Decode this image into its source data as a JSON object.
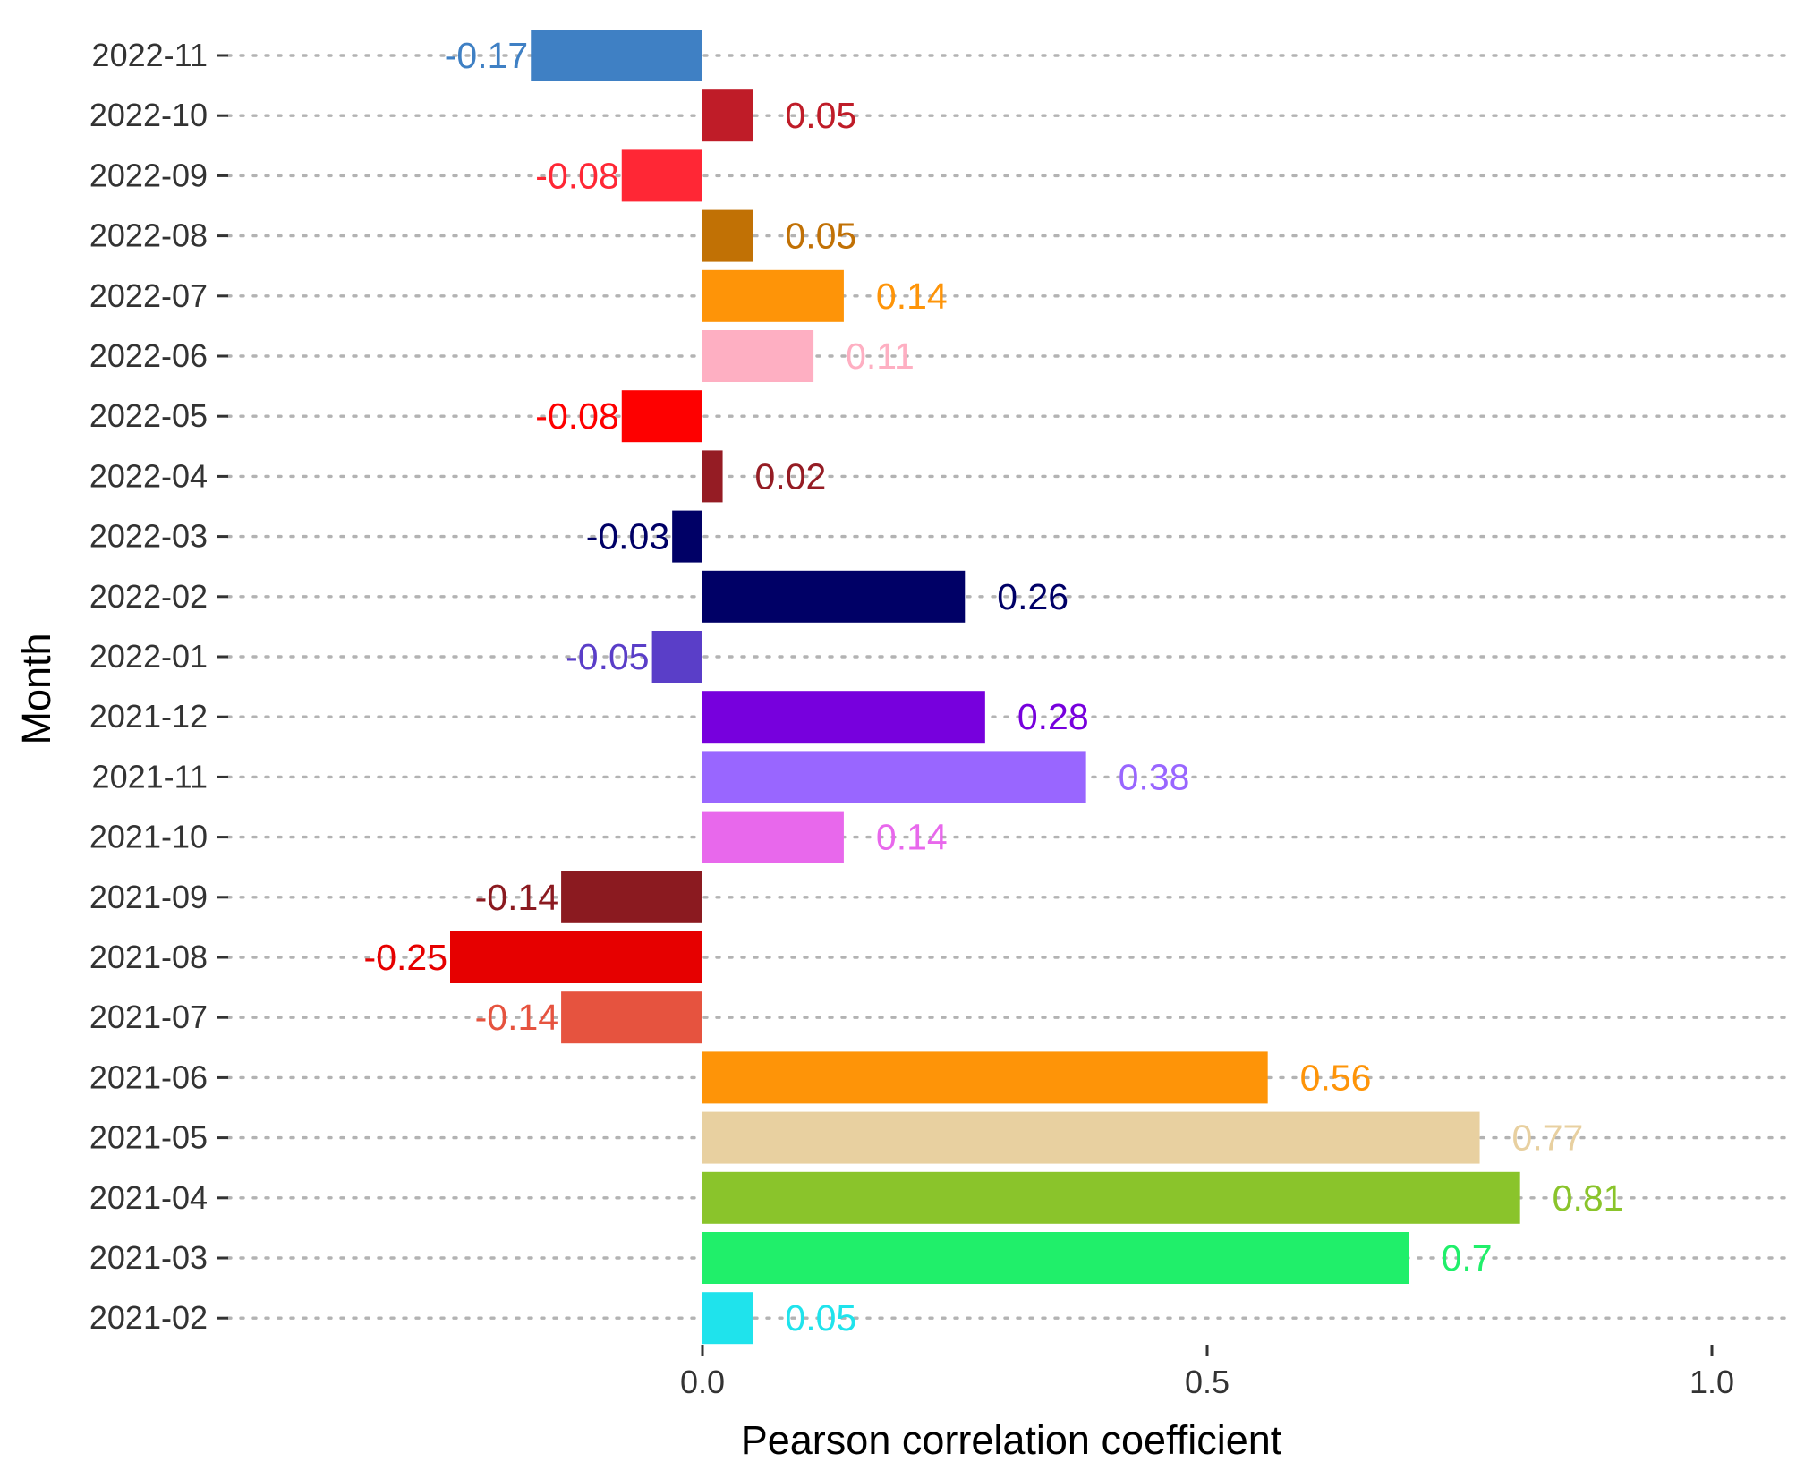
{
  "chart_data": {
    "type": "bar",
    "orientation": "horizontal",
    "xlabel": "Pearson correlation coefficient",
    "ylabel": "Month",
    "xlim": [
      -0.47,
      1.07
    ],
    "x_ticks": [
      {
        "value": 0.0,
        "label": "0.0"
      },
      {
        "value": 0.5,
        "label": "0.5"
      },
      {
        "value": 1.0,
        "label": "1.0"
      }
    ],
    "grid": "horizontal dotted lines at each category",
    "legend": "none",
    "categories": [
      "2021-02",
      "2021-03",
      "2021-04",
      "2021-05",
      "2021-06",
      "2021-07",
      "2021-08",
      "2021-09",
      "2021-10",
      "2021-11",
      "2021-12",
      "2022-01",
      "2022-02",
      "2022-03",
      "2022-04",
      "2022-05",
      "2022-06",
      "2022-07",
      "2022-08",
      "2022-09",
      "2022-10",
      "2022-11"
    ],
    "values": [
      0.05,
      0.7,
      0.81,
      0.77,
      0.56,
      -0.14,
      -0.25,
      -0.14,
      0.14,
      0.38,
      0.28,
      -0.05,
      0.26,
      -0.03,
      0.02,
      -0.08,
      0.11,
      0.14,
      0.05,
      -0.08,
      0.05,
      -0.17
    ],
    "value_labels": [
      "0.05",
      "0.7",
      "0.81",
      "0.77",
      "0.56",
      "-0.14",
      "-0.25",
      "-0.14",
      "0.14",
      "0.38",
      "0.28",
      "-0.05",
      "0.26",
      "-0.03",
      "0.02",
      "-0.08",
      "0.11",
      "0.14",
      "0.05",
      "-0.08",
      "0.05",
      "-0.17"
    ],
    "colors": [
      "#1FE3EC",
      "#20EF6A",
      "#8AC42B",
      "#E8D0A0",
      "#FE9408",
      "#E6533F",
      "#E60000",
      "#8B1A20",
      "#E868EC",
      "#9966FF",
      "#7700DD",
      "#5A3EC8",
      "#000066",
      "#000066",
      "#951C24",
      "#FE0000",
      "#FEAFC2",
      "#FE9408",
      "#C17105",
      "#FF2735",
      "#BF1C28",
      "#3F80C4"
    ]
  }
}
